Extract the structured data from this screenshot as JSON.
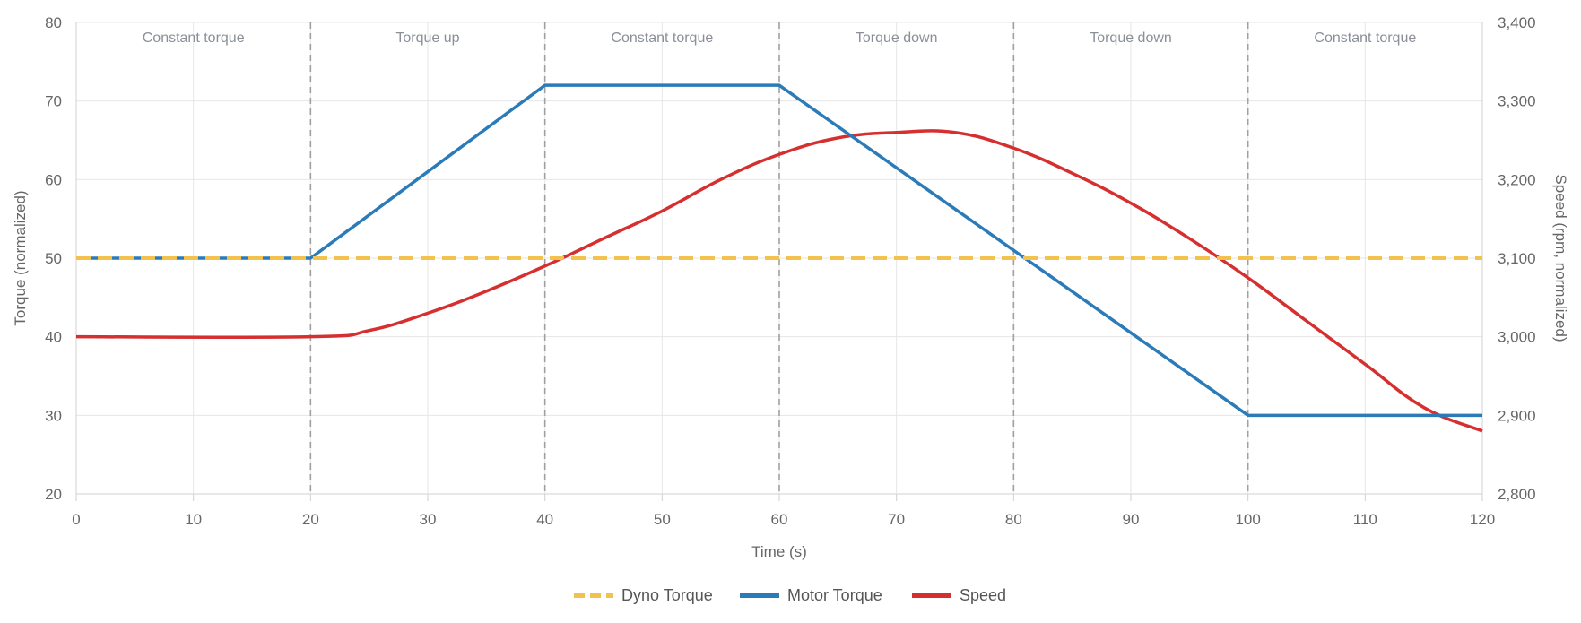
{
  "chart_data": {
    "type": "line",
    "title": "",
    "xlabel": "Time (s)",
    "ylabel": "Torque (normalized)",
    "y2label": "Speed (rpm, normalized)",
    "xlim": [
      0,
      120
    ],
    "ylim": [
      20,
      80
    ],
    "y2lim": [
      2800,
      3400
    ],
    "x_ticks": [
      0,
      10,
      20,
      30,
      40,
      50,
      60,
      70,
      80,
      90,
      100,
      110,
      120
    ],
    "y_ticks": [
      20,
      30,
      40,
      50,
      60,
      70,
      80
    ],
    "y2_ticks": [
      2800,
      2900,
      3000,
      3100,
      3200,
      3300,
      3400
    ],
    "y2_tick_labels": [
      "2,800",
      "2,900",
      "3,000",
      "3,100",
      "3,200",
      "3,300",
      "3,400"
    ],
    "grid": true,
    "legend_position": "bottom-center",
    "phase_boundaries": [
      20,
      40,
      60,
      80,
      100
    ],
    "phases": [
      {
        "label": "Constant torque",
        "start": 0,
        "end": 20
      },
      {
        "label": "Torque up",
        "start": 20,
        "end": 40
      },
      {
        "label": "Constant torque",
        "start": 40,
        "end": 60
      },
      {
        "label": "Torque down",
        "start": 60,
        "end": 80
      },
      {
        "label": "Torque down",
        "start": 80,
        "end": 100
      },
      {
        "label": "Constant torque",
        "start": 100,
        "end": 120
      }
    ],
    "series": [
      {
        "name": "Dyno Torque",
        "axis": "left",
        "color": "#f2c14e",
        "dashed": true,
        "x": [
          0,
          120
        ],
        "values": [
          50,
          50
        ]
      },
      {
        "name": "Motor Torque",
        "axis": "left",
        "color": "#2b7bb9",
        "dashed": false,
        "x": [
          0,
          20,
          40,
          60,
          100,
          120
        ],
        "values": [
          50,
          50,
          72,
          72,
          30,
          30
        ]
      },
      {
        "name": "Speed",
        "axis": "right",
        "color": "#d62f2f",
        "dashed": false,
        "x": [
          0,
          20,
          25,
          30,
          35,
          40,
          45,
          50,
          55,
          60,
          65,
          70,
          75,
          80,
          85,
          90,
          95,
          100,
          105,
          110,
          115,
          120
        ],
        "values": [
          3000,
          3000,
          3008,
          3030,
          3058,
          3090,
          3125,
          3160,
          3200,
          3232,
          3253,
          3260,
          3260,
          3240,
          3208,
          3170,
          3125,
          3075,
          3020,
          2965,
          2910,
          2880
        ]
      }
    ]
  }
}
